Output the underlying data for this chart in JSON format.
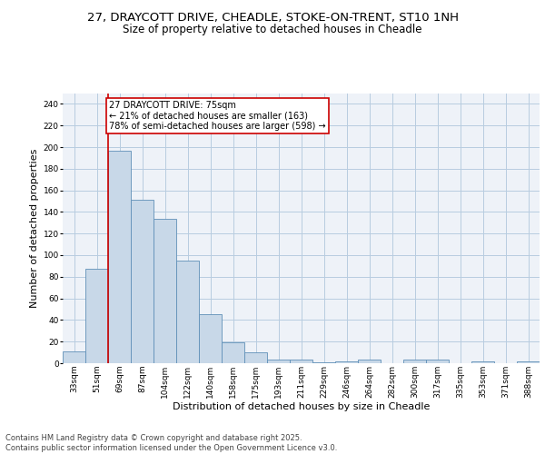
{
  "title1": "27, DRAYCOTT DRIVE, CHEADLE, STOKE-ON-TRENT, ST10 1NH",
  "title2": "Size of property relative to detached houses in Cheadle",
  "xlabel": "Distribution of detached houses by size in Cheadle",
  "ylabel": "Number of detached properties",
  "categories": [
    "33sqm",
    "51sqm",
    "69sqm",
    "87sqm",
    "104sqm",
    "122sqm",
    "140sqm",
    "158sqm",
    "175sqm",
    "193sqm",
    "211sqm",
    "229sqm",
    "246sqm",
    "264sqm",
    "282sqm",
    "300sqm",
    "317sqm",
    "335sqm",
    "353sqm",
    "371sqm",
    "388sqm"
  ],
  "values": [
    11,
    87,
    197,
    151,
    134,
    95,
    45,
    19,
    10,
    3,
    3,
    1,
    2,
    3,
    0,
    3,
    3,
    0,
    2,
    0,
    2
  ],
  "bar_color": "#c8d8e8",
  "bar_edge_color": "#6090b8",
  "grid_color": "#b8cce0",
  "background_color": "#eef2f8",
  "annotation_box_color": "#cc0000",
  "vline_color": "#cc0000",
  "vline_position": 2,
  "annotation_text": "27 DRAYCOTT DRIVE: 75sqm\n← 21% of detached houses are smaller (163)\n78% of semi-detached houses are larger (598) →",
  "ylim": [
    0,
    250
  ],
  "yticks": [
    0,
    20,
    40,
    60,
    80,
    100,
    120,
    140,
    160,
    180,
    200,
    220,
    240
  ],
  "footer": "Contains HM Land Registry data © Crown copyright and database right 2025.\nContains public sector information licensed under the Open Government Licence v3.0.",
  "title_fontsize": 9.5,
  "subtitle_fontsize": 8.5,
  "annotation_fontsize": 7,
  "axis_fontsize": 8,
  "tick_fontsize": 6.5
}
